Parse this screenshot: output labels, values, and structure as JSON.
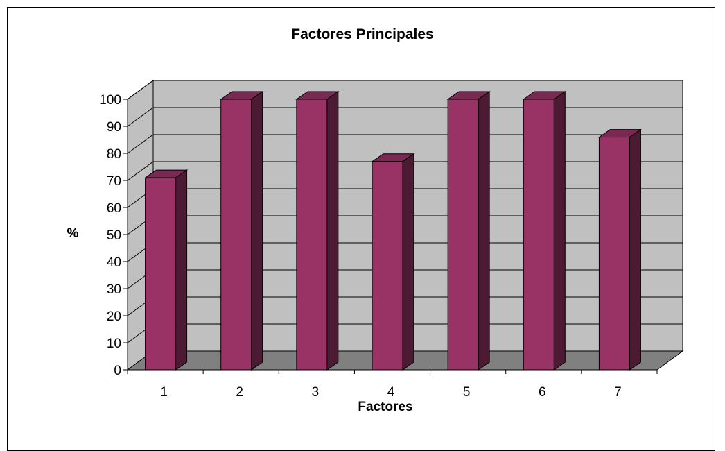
{
  "chart_data": {
    "type": "bar",
    "title": "Factores Principales",
    "xlabel": "Factores",
    "ylabel": "%",
    "categories": [
      "1",
      "2",
      "3",
      "4",
      "5",
      "6",
      "7"
    ],
    "values": [
      71,
      100,
      100,
      77,
      100,
      100,
      86
    ],
    "ylim": [
      0,
      100
    ],
    "yticks": [
      0,
      10,
      20,
      30,
      40,
      50,
      60,
      70,
      80,
      90,
      100
    ],
    "grid": true,
    "legend": "none",
    "style": "3d-column"
  },
  "colors": {
    "bar_front": "#993366",
    "bar_side": "#4d1a33",
    "bar_top": "#7a2952",
    "wall": "#c0c0c0",
    "floor": "#808080",
    "gridline": "#000000"
  }
}
